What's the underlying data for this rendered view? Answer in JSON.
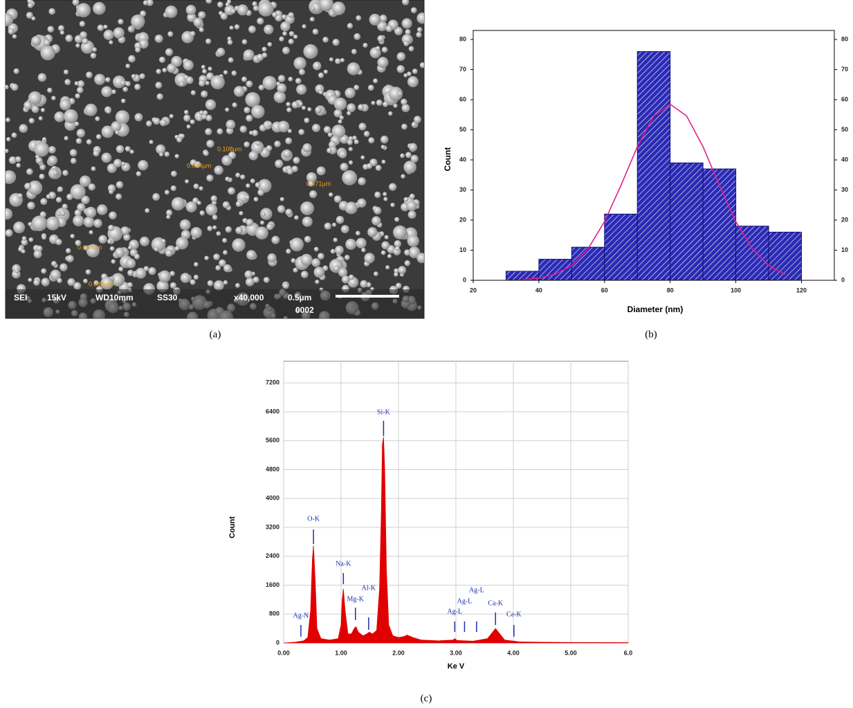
{
  "panel_labels": [
    "(a)",
    "(b)",
    "(c)"
  ],
  "sem_image": {
    "info": [
      "SEI",
      "15kV",
      "WD10mm",
      "SS30",
      "x40,000",
      "0.5µm",
      "0002"
    ],
    "measurements": [
      "0.108µm",
      "0.034µm",
      "0.071µm",
      "0.066µm",
      "0.049µm"
    ]
  },
  "chart_data": [
    {
      "type": "histogram",
      "y_label": "Count",
      "x_label": "Diameter (nm)",
      "bins": [
        30,
        40,
        50,
        60,
        70,
        80,
        90,
        100,
        110,
        120
      ],
      "values": [
        3,
        7,
        11,
        22,
        76,
        39,
        37,
        18,
        16
      ],
      "color": "#2b2bb5",
      "xlim": [
        20,
        130
      ],
      "xticks": [
        20,
        40,
        60,
        80,
        100,
        120
      ],
      "ylim": [
        0,
        83
      ],
      "yticks": [
        0,
        10,
        20,
        30,
        40,
        50,
        60,
        70,
        80
      ],
      "y2lim": [
        0,
        83
      ],
      "y2ticks": [
        0,
        10,
        20,
        30,
        40,
        50,
        60,
        70,
        80
      ],
      "fit": {
        "x": [
          35,
          40,
          45,
          50,
          55,
          60,
          65,
          70,
          75,
          80,
          85,
          90,
          95,
          100,
          105,
          110,
          115
        ],
        "values": [
          0.22,
          0.72,
          2.0,
          4.9,
          10.5,
          19.5,
          31.5,
          44.4,
          54.6,
          58.5,
          54.6,
          44.4,
          31.5,
          19.5,
          10.5,
          4.9,
          2.0
        ],
        "color": "#e0208a"
      }
    },
    {
      "type": "area",
      "y_label": "Count",
      "x_label": "Ke V",
      "x": [
        0,
        0.2,
        0.35,
        0.42,
        0.47,
        0.5,
        0.52,
        0.55,
        0.58,
        0.65,
        0.8,
        0.95,
        1.0,
        1.02,
        1.04,
        1.07,
        1.12,
        1.18,
        1.23,
        1.26,
        1.3,
        1.38,
        1.45,
        1.49,
        1.55,
        1.62,
        1.67,
        1.7,
        1.72,
        1.74,
        1.76,
        1.79,
        1.83,
        1.9,
        2.0,
        2.1,
        2.15,
        2.25,
        2.4,
        2.7,
        2.95,
        2.98,
        3.02,
        3.3,
        3.55,
        3.64,
        3.69,
        3.74,
        3.85,
        4.01,
        4.1,
        4.5,
        5.0,
        6.0
      ],
      "values": [
        0,
        20,
        60,
        150,
        900,
        2300,
        2700,
        1700,
        400,
        120,
        80,
        120,
        500,
        1200,
        1500,
        900,
        250,
        250,
        400,
        450,
        300,
        200,
        250,
        300,
        250,
        350,
        1500,
        3500,
        5500,
        5700,
        4800,
        2000,
        500,
        200,
        150,
        180,
        220,
        150,
        80,
        60,
        80,
        120,
        70,
        50,
        120,
        300,
        400,
        300,
        80,
        50,
        30,
        20,
        15,
        10
      ],
      "color": "#e00000",
      "xlim": [
        0,
        6
      ],
      "xticks": [
        {
          "value": 0,
          "label": "0.00"
        },
        {
          "value": 1,
          "label": "1.00"
        },
        {
          "value": 2,
          "label": "2.00"
        },
        {
          "value": 3,
          "label": "3.00"
        },
        {
          "value": 4,
          "label": "4.00"
        },
        {
          "value": 5,
          "label": "5.00"
        },
        {
          "value": 6,
          "label": "6.0"
        }
      ],
      "ylim": [
        0,
        7800
      ],
      "yticks": [
        0,
        800,
        1600,
        2400,
        3200,
        4000,
        4800,
        5600,
        6400,
        7200
      ],
      "grid": true,
      "label_color": "#1a2fb0",
      "peak_labels": [
        {
          "text": "Ag-N",
          "x": 0.3
        },
        {
          "text": "O-K",
          "x": 0.52
        },
        {
          "text": "Na-K",
          "x": 1.04
        },
        {
          "text": "Mg-K",
          "x": 1.25
        },
        {
          "text": "Al-K",
          "x": 1.48
        },
        {
          "text": "Si-K",
          "x": 1.74
        },
        {
          "text": "Ag-L",
          "x": 2.98
        },
        {
          "text": "Ag-L",
          "x": 3.15
        },
        {
          "text": "Ag-L",
          "x": 3.36
        },
        {
          "text": "Ca-K",
          "x": 3.69
        },
        {
          "text": "Ca-K",
          "x": 4.01
        }
      ]
    }
  ]
}
